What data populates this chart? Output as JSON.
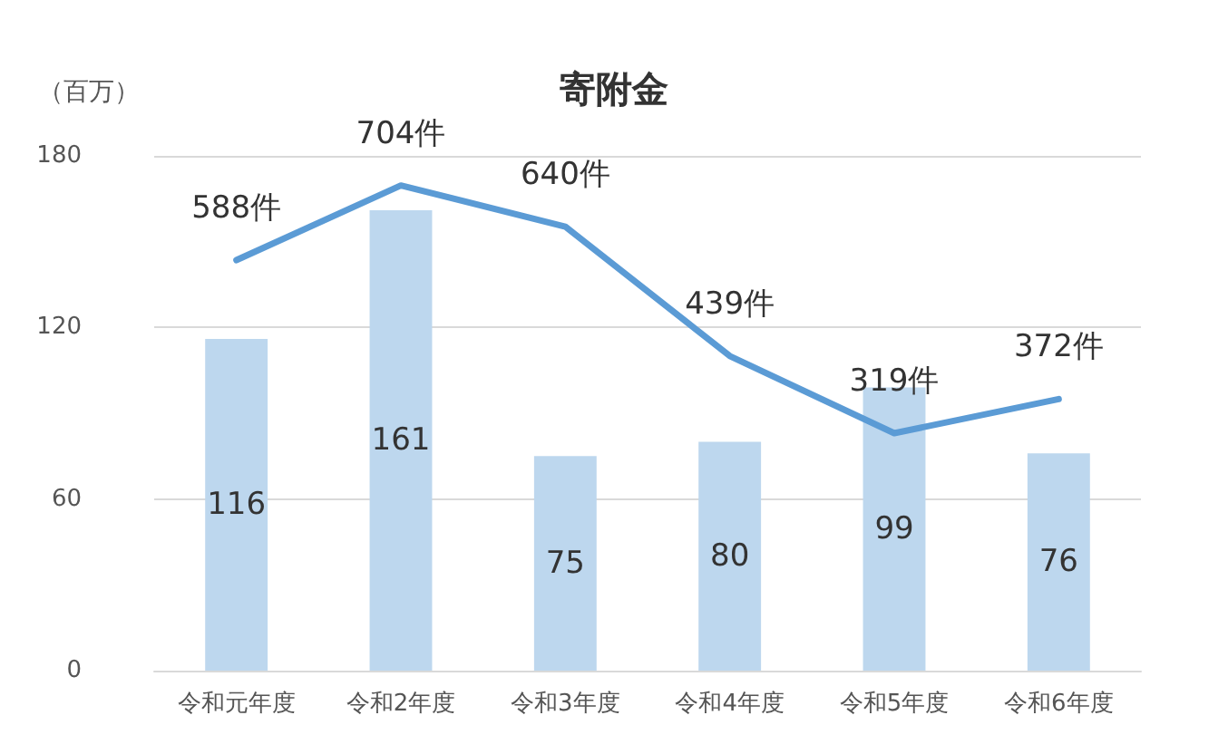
{
  "chart_data": {
    "type": "bar",
    "title": "寄附金",
    "ylabel": "（百万）",
    "categories": [
      "令和元年度",
      "令和2年度",
      "令和3年度",
      "令和4年度",
      "令和5年度",
      "令和6年度"
    ],
    "series": [
      {
        "color": "#bdd7ee",
        "values": [
          116,
          161,
          75,
          80,
          99,
          76
        ],
        "value_labels": [
          "116",
          "161",
          "75",
          "80",
          "99",
          "76"
        ]
      },
      {
        "type": "line",
        "axis": "y2",
        "color": "#5b9bd5",
        "values": [
          588,
          704,
          640,
          439,
          319,
          372
        ],
        "value_labels": [
          "588件",
          "704件",
          "640件",
          "439件",
          "319件",
          "372件"
        ]
      }
    ],
    "ylim": [
      0,
      180
    ],
    "yticks": [
      0,
      60,
      120,
      180
    ],
    "y2lim": [
      -50,
      750
    ],
    "grid": "y",
    "marker": "none",
    "line_style": "solid"
  }
}
